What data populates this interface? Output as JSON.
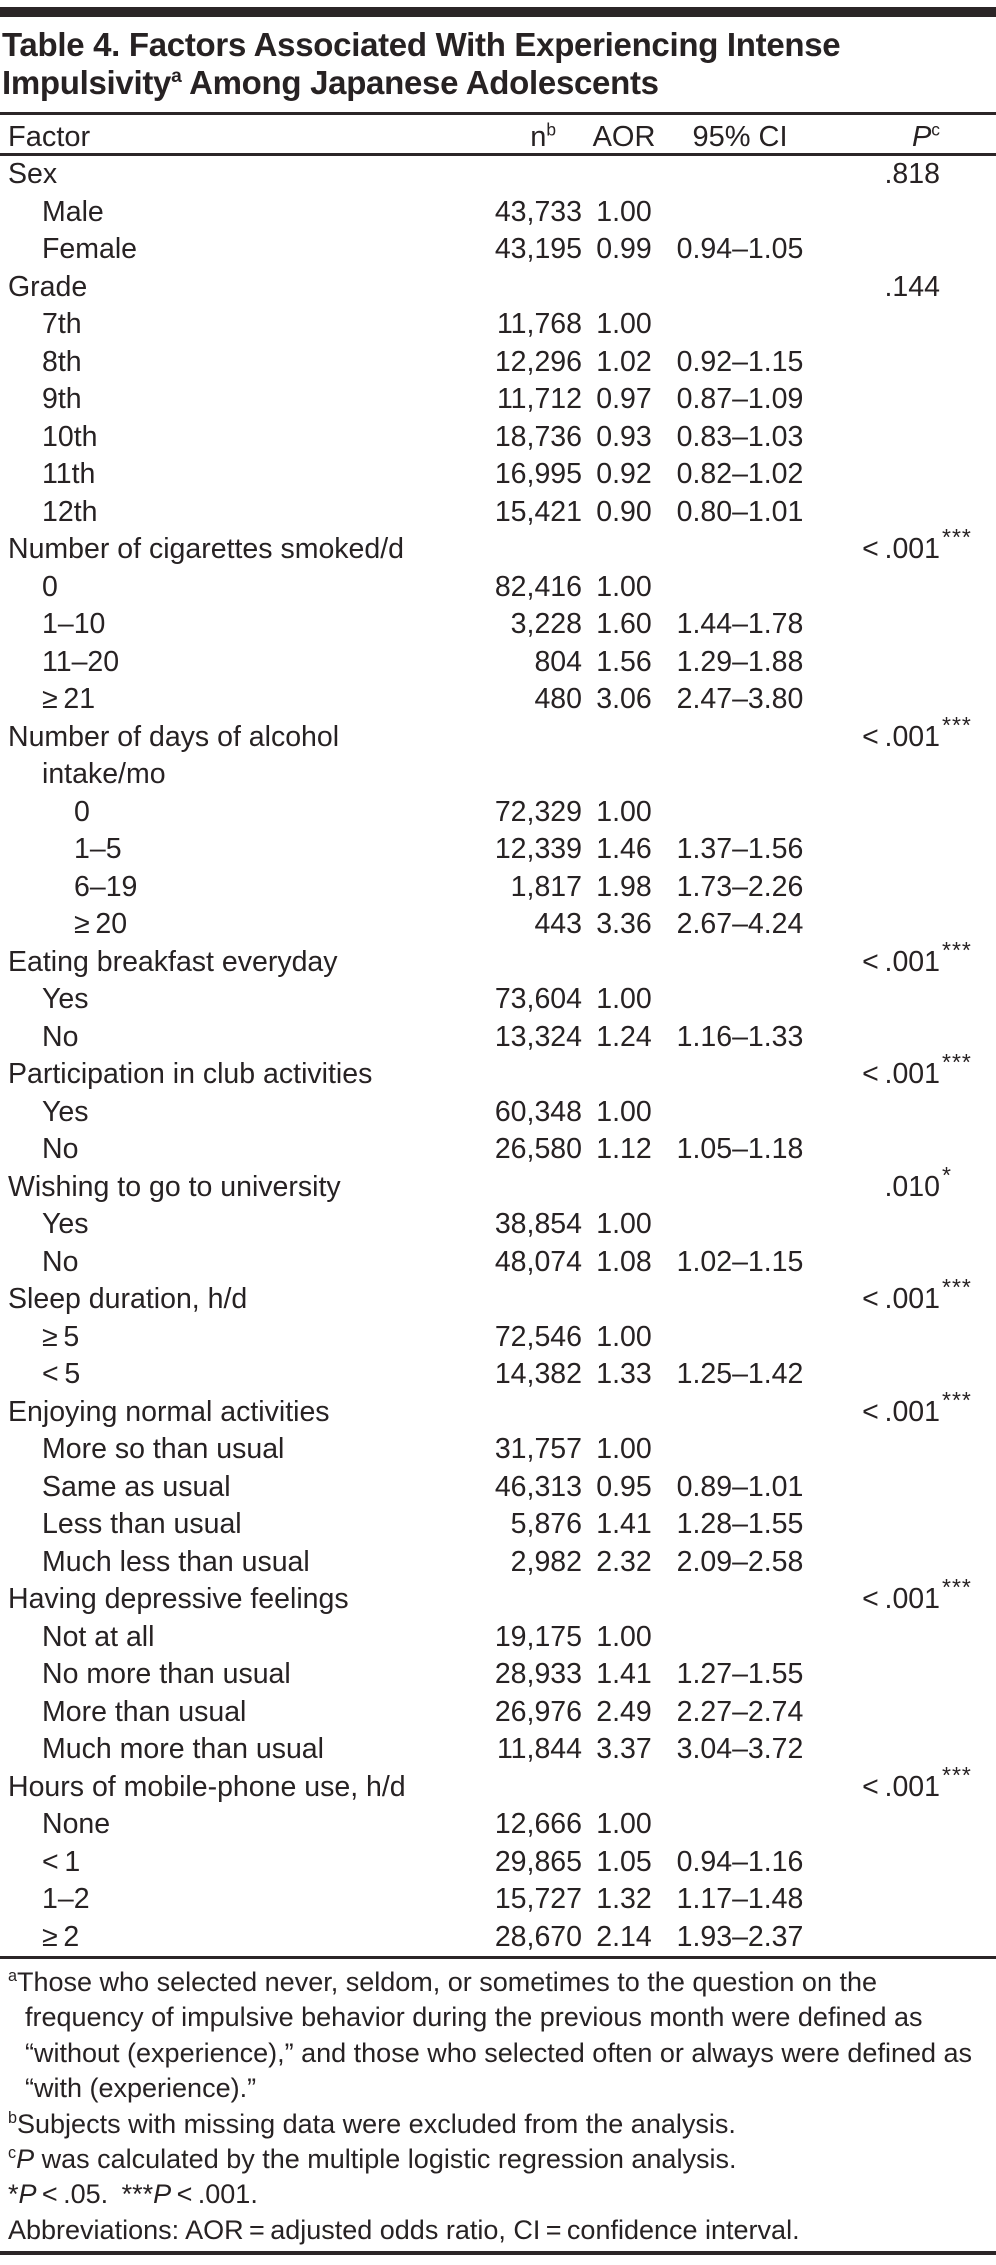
{
  "title": {
    "line1": "Table 4. Factors Associated With Experiencing Intense",
    "line2_pre": "Impulsivity",
    "line2_sup": "a",
    "line2_post": " Among Japanese Adolescents"
  },
  "columns": {
    "factor": "Factor",
    "n": "n",
    "n_sup": "b",
    "aor": "AOR",
    "ci": "95% CI",
    "p": "P",
    "p_sup": "c"
  },
  "table": {
    "rows": [
      {
        "label": "Sex",
        "lvl": "0",
        "n": "",
        "aor": "",
        "ci": "",
        "p": ".818",
        "ps": ""
      },
      {
        "label": "Male",
        "lvl": "1",
        "n": "43,733",
        "aor": "1.00",
        "ci": "",
        "p": "",
        "ps": ""
      },
      {
        "label": "Female",
        "lvl": "1",
        "n": "43,195",
        "aor": "0.99",
        "ci": "0.94–1.05",
        "p": "",
        "ps": ""
      },
      {
        "label": "Grade",
        "lvl": "0",
        "n": "",
        "aor": "",
        "ci": "",
        "p": ".144",
        "ps": ""
      },
      {
        "label": "7th",
        "lvl": "1",
        "n": "11,768",
        "aor": "1.00",
        "ci": "",
        "p": "",
        "ps": ""
      },
      {
        "label": "8th",
        "lvl": "1",
        "n": "12,296",
        "aor": "1.02",
        "ci": "0.92–1.15",
        "p": "",
        "ps": ""
      },
      {
        "label": "9th",
        "lvl": "1",
        "n": "11,712",
        "aor": "0.97",
        "ci": "0.87–1.09",
        "p": "",
        "ps": ""
      },
      {
        "label": "10th",
        "lvl": "1",
        "n": "18,736",
        "aor": "0.93",
        "ci": "0.83–1.03",
        "p": "",
        "ps": ""
      },
      {
        "label": "11th",
        "lvl": "1",
        "n": "16,995",
        "aor": "0.92",
        "ci": "0.82–1.02",
        "p": "",
        "ps": ""
      },
      {
        "label": "12th",
        "lvl": "1",
        "n": "15,421",
        "aor": "0.90",
        "ci": "0.80–1.01",
        "p": "",
        "ps": ""
      },
      {
        "label": "Number of cigarettes smoked/d",
        "lvl": "0",
        "n": "",
        "aor": "",
        "ci": "",
        "p": "< .001",
        "ps": "***"
      },
      {
        "label": "0",
        "lvl": "1",
        "n": "82,416",
        "aor": "1.00",
        "ci": "",
        "p": "",
        "ps": ""
      },
      {
        "label": "1–10",
        "lvl": "1",
        "n": "3,228",
        "aor": "1.60",
        "ci": "1.44–1.78",
        "p": "",
        "ps": ""
      },
      {
        "label": "11–20",
        "lvl": "1",
        "n": "804",
        "aor": "1.56",
        "ci": "1.29–1.88",
        "p": "",
        "ps": ""
      },
      {
        "label": "≥ 21",
        "lvl": "1",
        "n": "480",
        "aor": "3.06",
        "ci": "2.47–3.80",
        "p": "",
        "ps": ""
      },
      {
        "label": "Number of days of alcohol",
        "lvl": "0",
        "n": "",
        "aor": "",
        "ci": "",
        "p": "< .001",
        "ps": "***"
      },
      {
        "label": "intake/mo",
        "lvl": "wrap",
        "n": "",
        "aor": "",
        "ci": "",
        "p": "",
        "ps": ""
      },
      {
        "label": "0",
        "lvl": "2",
        "n": "72,329",
        "aor": "1.00",
        "ci": "",
        "p": "",
        "ps": ""
      },
      {
        "label": "1–5",
        "lvl": "2",
        "n": "12,339",
        "aor": "1.46",
        "ci": "1.37–1.56",
        "p": "",
        "ps": ""
      },
      {
        "label": "6–19",
        "lvl": "2",
        "n": "1,817",
        "aor": "1.98",
        "ci": "1.73–2.26",
        "p": "",
        "ps": ""
      },
      {
        "label": "≥ 20",
        "lvl": "2",
        "n": "443",
        "aor": "3.36",
        "ci": "2.67–4.24",
        "p": "",
        "ps": ""
      },
      {
        "label": "Eating breakfast everyday",
        "lvl": "0",
        "n": "",
        "aor": "",
        "ci": "",
        "p": "< .001",
        "ps": "***"
      },
      {
        "label": "Yes",
        "lvl": "1",
        "n": "73,604",
        "aor": "1.00",
        "ci": "",
        "p": "",
        "ps": ""
      },
      {
        "label": "No",
        "lvl": "1",
        "n": "13,324",
        "aor": "1.24",
        "ci": "1.16–1.33",
        "p": "",
        "ps": ""
      },
      {
        "label": "Participation in club activities",
        "lvl": "0",
        "n": "",
        "aor": "",
        "ci": "",
        "p": "< .001",
        "ps": "***"
      },
      {
        "label": "Yes",
        "lvl": "1",
        "n": "60,348",
        "aor": "1.00",
        "ci": "",
        "p": "",
        "ps": ""
      },
      {
        "label": "No",
        "lvl": "1",
        "n": "26,580",
        "aor": "1.12",
        "ci": "1.05–1.18",
        "p": "",
        "ps": ""
      },
      {
        "label": "Wishing to go to university",
        "lvl": "0",
        "n": "",
        "aor": "",
        "ci": "",
        "p": ".010",
        "ps": "*"
      },
      {
        "label": "Yes",
        "lvl": "1",
        "n": "38,854",
        "aor": "1.00",
        "ci": "",
        "p": "",
        "ps": ""
      },
      {
        "label": "No",
        "lvl": "1",
        "n": "48,074",
        "aor": "1.08",
        "ci": "1.02–1.15",
        "p": "",
        "ps": ""
      },
      {
        "label": "Sleep duration, h/d",
        "lvl": "0",
        "n": "",
        "aor": "",
        "ci": "",
        "p": "< .001",
        "ps": "***"
      },
      {
        "label": "≥ 5",
        "lvl": "1",
        "n": "72,546",
        "aor": "1.00",
        "ci": "",
        "p": "",
        "ps": ""
      },
      {
        "label": "< 5",
        "lvl": "1",
        "n": "14,382",
        "aor": "1.33",
        "ci": "1.25–1.42",
        "p": "",
        "ps": ""
      },
      {
        "label": "Enjoying normal activities",
        "lvl": "0",
        "n": "",
        "aor": "",
        "ci": "",
        "p": "< .001",
        "ps": "***"
      },
      {
        "label": "More so than usual",
        "lvl": "1",
        "n": "31,757",
        "aor": "1.00",
        "ci": "",
        "p": "",
        "ps": ""
      },
      {
        "label": "Same as usual",
        "lvl": "1",
        "n": "46,313",
        "aor": "0.95",
        "ci": "0.89–1.01",
        "p": "",
        "ps": ""
      },
      {
        "label": "Less than usual",
        "lvl": "1",
        "n": "5,876",
        "aor": "1.41",
        "ci": "1.28–1.55",
        "p": "",
        "ps": ""
      },
      {
        "label": "Much less than usual",
        "lvl": "1",
        "n": "2,982",
        "aor": "2.32",
        "ci": "2.09–2.58",
        "p": "",
        "ps": ""
      },
      {
        "label": "Having depressive feelings",
        "lvl": "0",
        "n": "",
        "aor": "",
        "ci": "",
        "p": "< .001",
        "ps": "***"
      },
      {
        "label": "Not at all",
        "lvl": "1",
        "n": "19,175",
        "aor": "1.00",
        "ci": "",
        "p": "",
        "ps": ""
      },
      {
        "label": "No more than usual",
        "lvl": "1",
        "n": "28,933",
        "aor": "1.41",
        "ci": "1.27–1.55",
        "p": "",
        "ps": ""
      },
      {
        "label": "More than usual",
        "lvl": "1",
        "n": "26,976",
        "aor": "2.49",
        "ci": "2.27–2.74",
        "p": "",
        "ps": ""
      },
      {
        "label": "Much more than usual",
        "lvl": "1",
        "n": "11,844",
        "aor": "3.37",
        "ci": "3.04–3.72",
        "p": "",
        "ps": ""
      },
      {
        "label": "Hours of mobile-phone use, h/d",
        "lvl": "0",
        "n": "",
        "aor": "",
        "ci": "",
        "p": "< .001",
        "ps": "***"
      },
      {
        "label": "None",
        "lvl": "1",
        "n": "12,666",
        "aor": "1.00",
        "ci": "",
        "p": "",
        "ps": ""
      },
      {
        "label": "< 1",
        "lvl": "1",
        "n": "29,865",
        "aor": "1.05",
        "ci": "0.94–1.16",
        "p": "",
        "ps": ""
      },
      {
        "label": "1–2",
        "lvl": "1",
        "n": "15,727",
        "aor": "1.32",
        "ci": "1.17–1.48",
        "p": "",
        "ps": ""
      },
      {
        "label": "≥ 2",
        "lvl": "1",
        "n": "28,670",
        "aor": "2.14",
        "ci": "1.93–2.37",
        "p": "",
        "ps": ""
      }
    ]
  },
  "footnotes": [
    {
      "hang": true,
      "parts": [
        {
          "sup": "a"
        },
        {
          "t": "Those who selected never, seldom, or sometimes to the question on the frequency of impulsive behavior during the previous month were defined as “without (experience),” and those who selected often or always were defined as “with (experience).”"
        }
      ]
    },
    {
      "hang": true,
      "parts": [
        {
          "sup": "b"
        },
        {
          "t": "Subjects with missing data were excluded from the analysis."
        }
      ]
    },
    {
      "hang": true,
      "parts": [
        {
          "sup": "c"
        },
        {
          "i": "P"
        },
        {
          "t": " was calculated by the multiple logistic regression analysis."
        }
      ]
    },
    {
      "hang": false,
      "parts": [
        {
          "t": "*"
        },
        {
          "i": "P"
        },
        {
          "t": " < .05. ***"
        },
        {
          "i": "P"
        },
        {
          "t": " < .001."
        }
      ]
    },
    {
      "hang": false,
      "parts": [
        {
          "t": "Abbreviations: AOR = adjusted odds ratio, CI = confidence interval."
        }
      ]
    }
  ],
  "colors": {
    "text": "#272223",
    "rule": "#2b2627",
    "background": "#ffffff"
  }
}
